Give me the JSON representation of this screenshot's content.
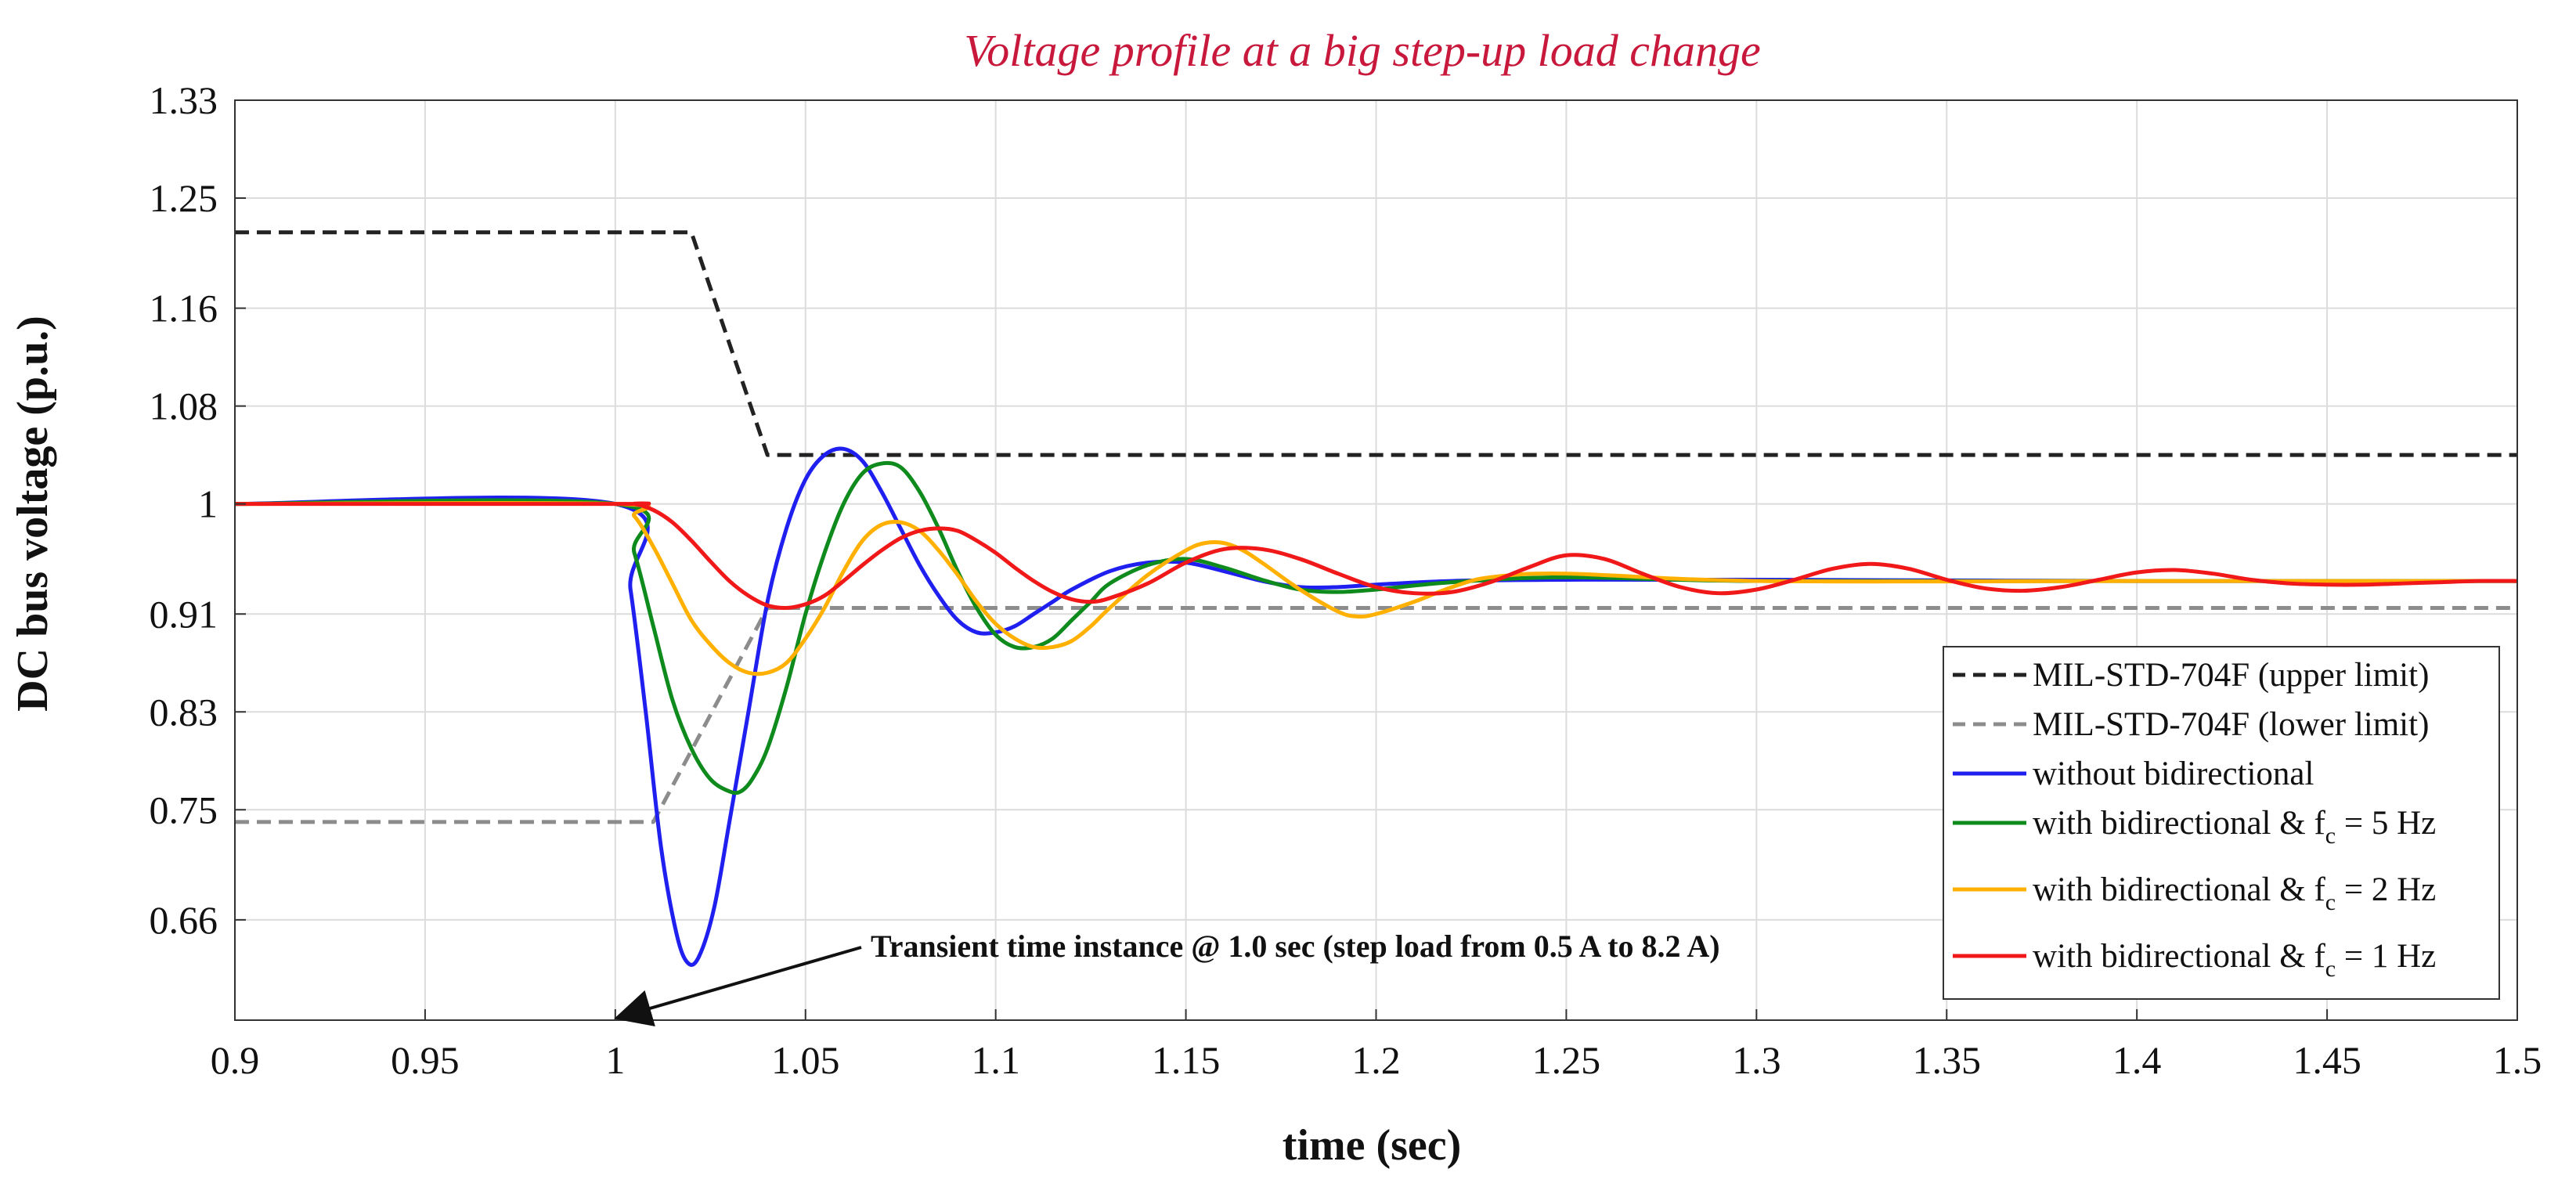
{
  "chart_data": {
    "type": "line",
    "title": "Voltage profile at a big step-up load change",
    "title_color": "#c8193c",
    "xlabel": "time (sec)",
    "ylabel": "DC bus voltage (p.u.)",
    "xlim": [
      0.9,
      1.5
    ],
    "ylim": [
      0.578,
      1.33
    ],
    "xticks": [
      0.9,
      0.95,
      1,
      1.05,
      1.1,
      1.15,
      1.2,
      1.25,
      1.3,
      1.35,
      1.4,
      1.45,
      1.5
    ],
    "xtick_labels": [
      "0.9",
      "0.95",
      "1",
      "1.05",
      "1.1",
      "1.15",
      "1.2",
      "1.25",
      "1.3",
      "1.35",
      "1.4",
      "1.45",
      "1.5"
    ],
    "yticks": [
      0.66,
      0.75,
      0.83,
      0.91,
      1.0,
      1.08,
      1.16,
      1.25,
      1.33
    ],
    "ytick_labels": [
      "0.66",
      "0.75",
      "0.83",
      "0.91",
      "1",
      "1.08",
      "1.16",
      "1.25",
      "1.33"
    ],
    "grid": true,
    "legend_position": "bottom-right",
    "series": [
      {
        "name": "MIL-STD-704F (upper limit)",
        "color": "#222222",
        "dash": "dashed",
        "x": [
          0.9,
          1.02,
          1.04,
          1.5
        ],
        "y": [
          1.222,
          1.222,
          1.04,
          1.04
        ]
      },
      {
        "name": "MIL-STD-704F (lower limit)",
        "color": "#8c8c8c",
        "dash": "dashed",
        "x": [
          0.9,
          1.01,
          1.04,
          1.5
        ],
        "y": [
          0.74,
          0.74,
          0.915,
          0.915
        ]
      },
      {
        "name": "without bidirectional",
        "color": "#1f1ff0",
        "x": [
          0.9,
          1.0,
          1.004,
          1.008,
          1.012,
          1.016,
          1.019,
          1.022,
          1.026,
          1.03,
          1.035,
          1.04,
          1.045,
          1.05,
          1.055,
          1.06,
          1.065,
          1.07,
          1.075,
          1.08,
          1.085,
          1.09,
          1.095,
          1.1,
          1.105,
          1.11,
          1.115,
          1.12,
          1.13,
          1.14,
          1.15,
          1.16,
          1.17,
          1.18,
          1.19,
          1.2,
          1.22,
          1.25,
          1.3,
          1.4,
          1.5
        ],
        "y": [
          1.0,
          1.0,
          0.93,
          0.83,
          0.72,
          0.65,
          0.625,
          0.63,
          0.67,
          0.74,
          0.83,
          0.92,
          0.98,
          1.02,
          1.04,
          1.045,
          1.035,
          1.01,
          0.98,
          0.95,
          0.925,
          0.905,
          0.895,
          0.895,
          0.9,
          0.91,
          0.92,
          0.93,
          0.945,
          0.952,
          0.952,
          0.945,
          0.937,
          0.932,
          0.932,
          0.934,
          0.937,
          0.938,
          0.938,
          0.937,
          0.937
        ]
      },
      {
        "name": "with bidirectional & f_c = 5 Hz",
        "color": "#0f8a1c",
        "x": [
          0.9,
          1.0,
          1.005,
          1.01,
          1.015,
          1.02,
          1.025,
          1.03,
          1.033,
          1.036,
          1.04,
          1.045,
          1.05,
          1.055,
          1.06,
          1.065,
          1.07,
          1.075,
          1.08,
          1.085,
          1.09,
          1.095,
          1.1,
          1.105,
          1.11,
          1.115,
          1.12,
          1.125,
          1.13,
          1.14,
          1.15,
          1.16,
          1.17,
          1.18,
          1.19,
          1.2,
          1.22,
          1.25,
          1.3,
          1.4,
          1.5
        ],
        "y": [
          1.0,
          1.0,
          0.96,
          0.9,
          0.84,
          0.8,
          0.775,
          0.765,
          0.765,
          0.775,
          0.8,
          0.85,
          0.91,
          0.96,
          1.0,
          1.025,
          1.033,
          1.03,
          1.01,
          0.98,
          0.945,
          0.915,
          0.893,
          0.883,
          0.883,
          0.89,
          0.905,
          0.92,
          0.935,
          0.95,
          0.955,
          0.948,
          0.938,
          0.93,
          0.928,
          0.93,
          0.936,
          0.94,
          0.937,
          0.937,
          0.937
        ]
      },
      {
        "name": "with bidirectional & f_c = 2 Hz",
        "color": "#ffb000",
        "x": [
          0.9,
          1.0,
          1.005,
          1.01,
          1.015,
          1.02,
          1.025,
          1.03,
          1.035,
          1.04,
          1.045,
          1.05,
          1.055,
          1.06,
          1.065,
          1.07,
          1.075,
          1.08,
          1.085,
          1.09,
          1.095,
          1.1,
          1.105,
          1.11,
          1.115,
          1.12,
          1.125,
          1.13,
          1.14,
          1.15,
          1.155,
          1.16,
          1.165,
          1.17,
          1.18,
          1.19,
          1.195,
          1.2,
          1.21,
          1.22,
          1.23,
          1.25,
          1.3,
          1.4,
          1.5
        ],
        "y": [
          1.0,
          1.0,
          0.99,
          0.965,
          0.935,
          0.905,
          0.885,
          0.87,
          0.862,
          0.862,
          0.87,
          0.89,
          0.915,
          0.945,
          0.97,
          0.983,
          0.985,
          0.978,
          0.962,
          0.942,
          0.92,
          0.902,
          0.89,
          0.883,
          0.883,
          0.888,
          0.9,
          0.915,
          0.942,
          0.962,
          0.968,
          0.968,
          0.962,
          0.952,
          0.93,
          0.912,
          0.908,
          0.91,
          0.92,
          0.932,
          0.94,
          0.943,
          0.937,
          0.937,
          0.937
        ]
      },
      {
        "name": "with bidirectional & f_c = 1 Hz",
        "color": "#f01818",
        "x": [
          0.9,
          1.0,
          1.005,
          1.01,
          1.015,
          1.02,
          1.025,
          1.03,
          1.035,
          1.04,
          1.045,
          1.05,
          1.055,
          1.06,
          1.065,
          1.07,
          1.075,
          1.08,
          1.085,
          1.09,
          1.095,
          1.1,
          1.105,
          1.11,
          1.115,
          1.12,
          1.125,
          1.13,
          1.14,
          1.15,
          1.16,
          1.17,
          1.18,
          1.19,
          1.2,
          1.21,
          1.22,
          1.23,
          1.24,
          1.25,
          1.26,
          1.27,
          1.28,
          1.29,
          1.3,
          1.31,
          1.32,
          1.33,
          1.34,
          1.35,
          1.36,
          1.37,
          1.38,
          1.39,
          1.4,
          1.41,
          1.42,
          1.43,
          1.44,
          1.45,
          1.46,
          1.47,
          1.48,
          1.49,
          1.5
        ],
        "y": [
          1.0,
          1.0,
          1.0,
          0.995,
          0.985,
          0.97,
          0.953,
          0.937,
          0.925,
          0.917,
          0.915,
          0.918,
          0.925,
          0.937,
          0.95,
          0.962,
          0.972,
          0.978,
          0.98,
          0.978,
          0.97,
          0.96,
          0.948,
          0.937,
          0.928,
          0.922,
          0.92,
          0.923,
          0.935,
          0.952,
          0.963,
          0.963,
          0.955,
          0.943,
          0.932,
          0.927,
          0.928,
          0.936,
          0.948,
          0.958,
          0.955,
          0.943,
          0.932,
          0.927,
          0.93,
          0.938,
          0.947,
          0.951,
          0.947,
          0.938,
          0.931,
          0.929,
          0.932,
          0.938,
          0.944,
          0.946,
          0.943,
          0.938,
          0.935,
          0.934,
          0.934,
          0.935,
          0.936,
          0.937,
          0.937
        ]
      }
    ],
    "legend": [
      {
        "label": "MIL-STD-704F (upper limit)",
        "color": "#222222",
        "dash": "dashed",
        "sub": ""
      },
      {
        "label": "MIL-STD-704F (lower limit)",
        "color": "#8c8c8c",
        "dash": "dashed",
        "sub": ""
      },
      {
        "label": "without bidirectional",
        "color": "#1f1ff0",
        "dash": "solid",
        "sub": ""
      },
      {
        "label": "with bidirectional & f",
        "sub": "c",
        "tail": " = 5 Hz",
        "color": "#0f8a1c",
        "dash": "solid"
      },
      {
        "label": "with bidirectional & f",
        "sub": "c",
        "tail": " = 2 Hz",
        "color": "#ffb000",
        "dash": "solid"
      },
      {
        "label": "with bidirectional & f",
        "sub": "c",
        "tail": " = 1 Hz",
        "color": "#f01818",
        "dash": "solid"
      }
    ],
    "annotation": {
      "text": "Transient time instance @ 1.0 sec (step load from 0.5 A to 8.2 A)",
      "arrow_to_x": 1.0,
      "arrow_to_y": 0.578
    }
  }
}
